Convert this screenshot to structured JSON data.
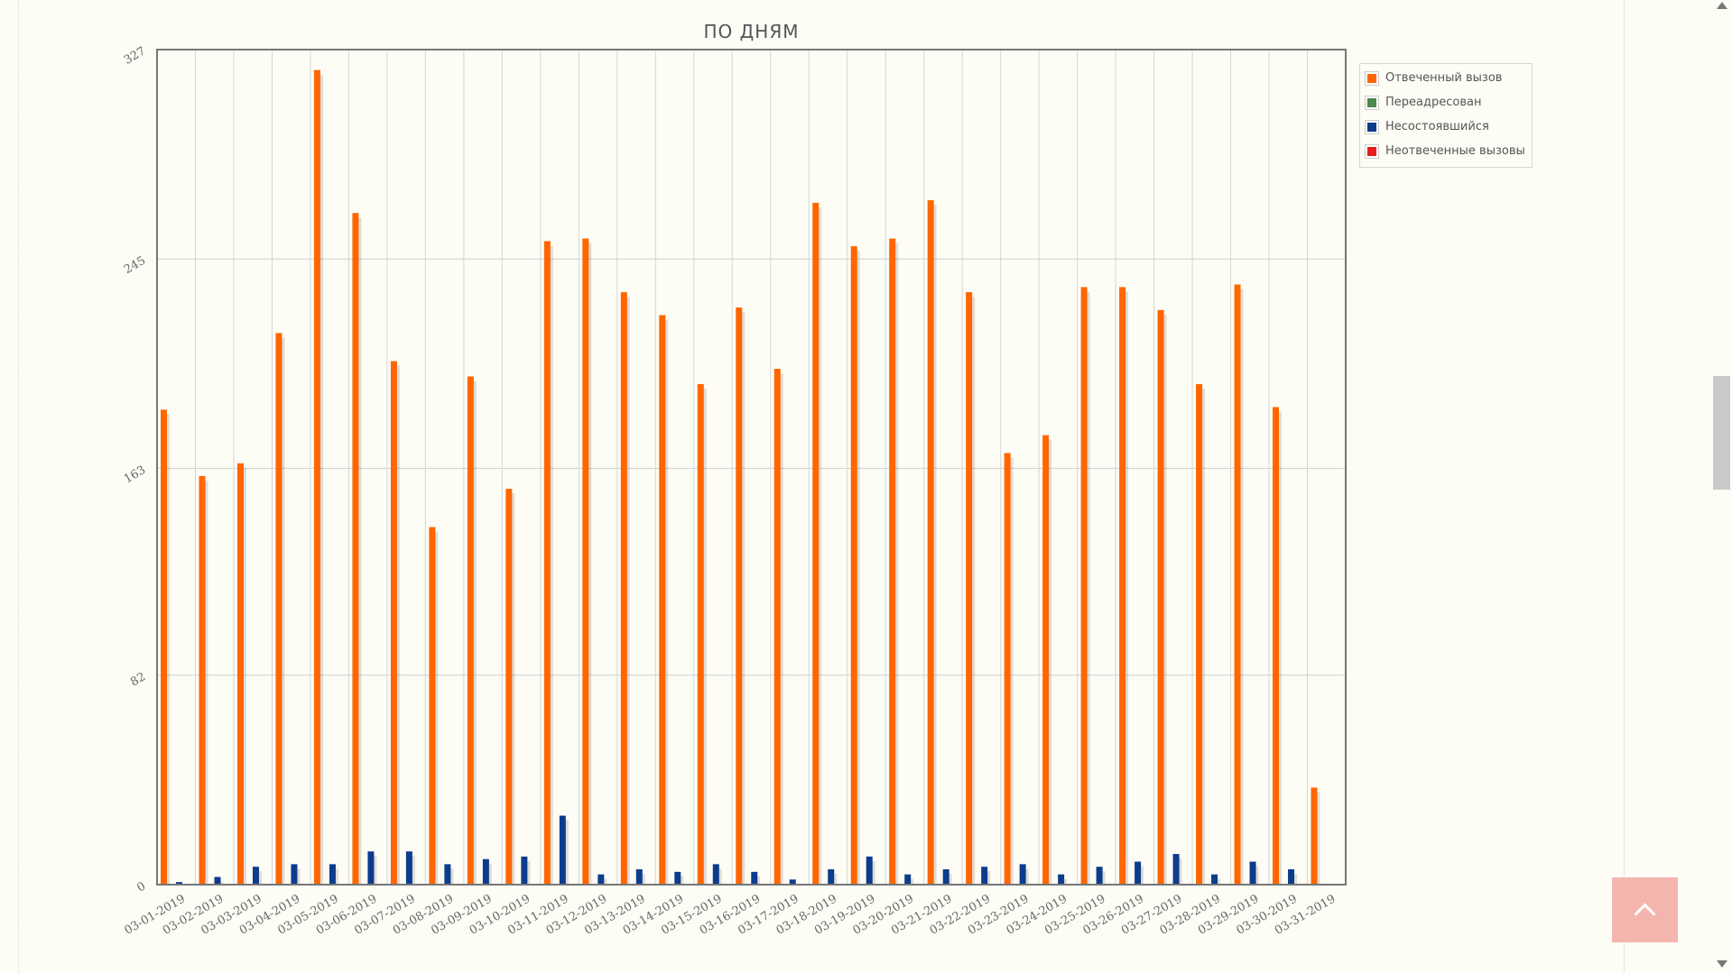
{
  "chart_data": {
    "type": "bar",
    "title": "ПО ДНЯМ",
    "xlabel": "",
    "ylabel": "",
    "ylim": [
      0,
      327
    ],
    "yticks": [
      "0",
      "82",
      "163",
      "245",
      "327"
    ],
    "grid": true,
    "legend_position": "right",
    "categories": [
      "03-01-2019",
      "03-02-2019",
      "03-03-2019",
      "03-04-2019",
      "03-05-2019",
      "03-06-2019",
      "03-07-2019",
      "03-08-2019",
      "03-09-2019",
      "03-10-2019",
      "03-11-2019",
      "03-12-2019",
      "03-13-2019",
      "03-14-2019",
      "03-15-2019",
      "03-16-2019",
      "03-17-2019",
      "03-18-2019",
      "03-19-2019",
      "03-20-2019",
      "03-21-2019",
      "03-22-2019",
      "03-23-2019",
      "03-24-2019",
      "03-25-2019",
      "03-26-2019",
      "03-27-2019",
      "03-28-2019",
      "03-29-2019",
      "03-30-2019",
      "03-31-2019"
    ],
    "series": [
      {
        "name": "Отвеченный вызов",
        "color": "#ff6600",
        "values": [
          186,
          160,
          165,
          216,
          319,
          263,
          205,
          140,
          199,
          155,
          252,
          253,
          232,
          223,
          196,
          226,
          202,
          267,
          250,
          253,
          268,
          232,
          169,
          176,
          234,
          234,
          225,
          196,
          235,
          187,
          38
        ]
      },
      {
        "name": "Переадресован",
        "color": "#4a8a4a",
        "values": [
          0,
          0,
          0,
          0,
          0,
          0,
          0,
          0,
          0,
          0,
          0,
          0,
          0,
          0,
          0,
          0,
          0,
          0,
          0,
          0,
          0,
          0,
          0,
          0,
          0,
          0,
          0,
          0,
          0,
          0,
          0
        ]
      },
      {
        "name": "Несостоявшийся",
        "color": "#0c3c8c",
        "values": [
          1,
          3,
          7,
          8,
          8,
          13,
          13,
          8,
          10,
          11,
          27,
          4,
          6,
          5,
          8,
          5,
          2,
          6,
          11,
          4,
          6,
          7,
          8,
          4,
          7,
          9,
          12,
          4,
          9,
          6,
          0
        ]
      },
      {
        "name": "Неотвеченные вызовы",
        "color": "#e81c1c",
        "values": [
          0,
          0,
          0,
          0,
          0,
          0,
          0,
          0,
          0,
          0,
          0,
          0,
          0,
          0,
          0,
          0,
          0,
          0,
          0,
          0,
          0,
          0,
          0,
          0,
          0,
          0,
          0,
          0,
          0,
          0,
          0
        ]
      }
    ]
  }
}
